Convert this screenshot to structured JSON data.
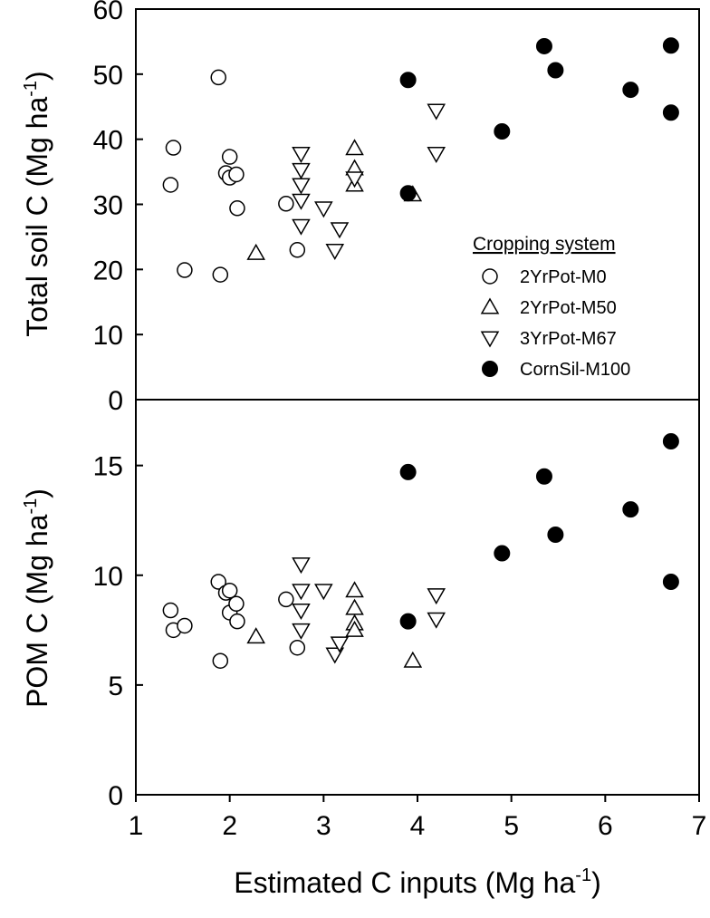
{
  "chart_data": [
    {
      "type": "scatter",
      "panel": "top",
      "ylabel": "Total soil C (Mg ha",
      "ylabel_sup": "-1",
      "ylabel_end": ")",
      "ylim": [
        0,
        60
      ],
      "yticks": [
        0,
        10,
        20,
        30,
        40,
        50,
        60
      ],
      "xlim": [
        1,
        7
      ],
      "legend": {
        "title": "Cropping system",
        "placement": "lower-right",
        "entries": [
          "2YrPot-M0",
          "2YrPot-M50",
          "3YrPot-M67",
          "CornSil-M100"
        ]
      },
      "series": [
        {
          "name": "2YrPot-M0",
          "marker": "circle-open",
          "points": [
            [
              1.37,
              33
            ],
            [
              1.4,
              38.7
            ],
            [
              1.52,
              19.9
            ],
            [
              1.88,
              49.5
            ],
            [
              1.9,
              19.2
            ],
            [
              1.96,
              34.8
            ],
            [
              2.0,
              37.3
            ],
            [
              2.0,
              34.1
            ],
            [
              2.07,
              34.6
            ],
            [
              2.08,
              29.4
            ],
            [
              2.6,
              30.1
            ],
            [
              2.72,
              23
            ]
          ]
        },
        {
          "name": "2YrPot-M50",
          "marker": "triangle-up-open",
          "points": [
            [
              2.28,
              22.5
            ],
            [
              3.33,
              38.6
            ],
            [
              3.33,
              35.5
            ],
            [
              3.33,
              33
            ],
            [
              3.95,
              31.5
            ]
          ]
        },
        {
          "name": "3YrPot-M67",
          "marker": "triangle-down-open",
          "points": [
            [
              2.76,
              37.8
            ],
            [
              2.76,
              35.3
            ],
            [
              2.76,
              33
            ],
            [
              2.76,
              30.6
            ],
            [
              2.76,
              26.7
            ],
            [
              3.0,
              29.4
            ],
            [
              3.12,
              22.9
            ],
            [
              3.17,
              26.2
            ],
            [
              3.33,
              34
            ],
            [
              4.2,
              44.4
            ],
            [
              4.2,
              37.8
            ]
          ]
        },
        {
          "name": "CornSil-M100",
          "marker": "circle-filled",
          "points": [
            [
              3.9,
              49.1
            ],
            [
              3.9,
              31.7
            ],
            [
              4.9,
              41.2
            ],
            [
              5.35,
              54.3
            ],
            [
              5.47,
              50.6
            ],
            [
              6.27,
              47.6
            ],
            [
              6.7,
              54.4
            ],
            [
              6.7,
              44.1
            ]
          ]
        }
      ]
    },
    {
      "type": "scatter",
      "panel": "bottom",
      "ylabel": "POM C (Mg ha",
      "ylabel_sup": "-1",
      "ylabel_end": ")",
      "ylim": [
        0,
        18
      ],
      "yticks": [
        0,
        5,
        10,
        15
      ],
      "xlabel": "Estimated C inputs (Mg ha",
      "xlabel_sup": "-1",
      "xlabel_end": ")",
      "xlim": [
        1,
        7
      ],
      "xticks": [
        1,
        2,
        3,
        4,
        5,
        6,
        7
      ],
      "series": [
        {
          "name": "2YrPot-M0",
          "marker": "circle-open",
          "points": [
            [
              1.37,
              8.4
            ],
            [
              1.4,
              7.5
            ],
            [
              1.52,
              7.7
            ],
            [
              1.88,
              9.7
            ],
            [
              1.9,
              6.1
            ],
            [
              1.96,
              9.2
            ],
            [
              2.0,
              9.3
            ],
            [
              2.0,
              8.3
            ],
            [
              2.07,
              8.7
            ],
            [
              2.08,
              7.9
            ],
            [
              2.6,
              8.9
            ],
            [
              2.72,
              6.7
            ]
          ]
        },
        {
          "name": "2YrPot-M50",
          "marker": "triangle-up-open",
          "points": [
            [
              2.28,
              7.2
            ],
            [
              3.33,
              9.3
            ],
            [
              3.33,
              8.5
            ],
            [
              3.33,
              7.8
            ],
            [
              3.33,
              7.5
            ],
            [
              3.95,
              6.1
            ]
          ]
        },
        {
          "name": "3YrPot-M67",
          "marker": "triangle-down-open",
          "points": [
            [
              2.76,
              10.5
            ],
            [
              2.76,
              9.3
            ],
            [
              2.76,
              8.4
            ],
            [
              2.76,
              7.5
            ],
            [
              3.0,
              9.3
            ],
            [
              3.12,
              6.4
            ],
            [
              3.17,
              6.9
            ],
            [
              4.2,
              9.1
            ],
            [
              4.2,
              8.0
            ]
          ]
        },
        {
          "name": "CornSil-M100",
          "marker": "circle-filled",
          "points": [
            [
              3.9,
              14.7
            ],
            [
              3.9,
              7.9
            ],
            [
              4.9,
              11.0
            ],
            [
              5.35,
              14.5
            ],
            [
              5.47,
              11.85
            ],
            [
              6.27,
              13.0
            ],
            [
              6.7,
              16.1
            ],
            [
              6.7,
              9.7
            ]
          ]
        }
      ]
    }
  ]
}
